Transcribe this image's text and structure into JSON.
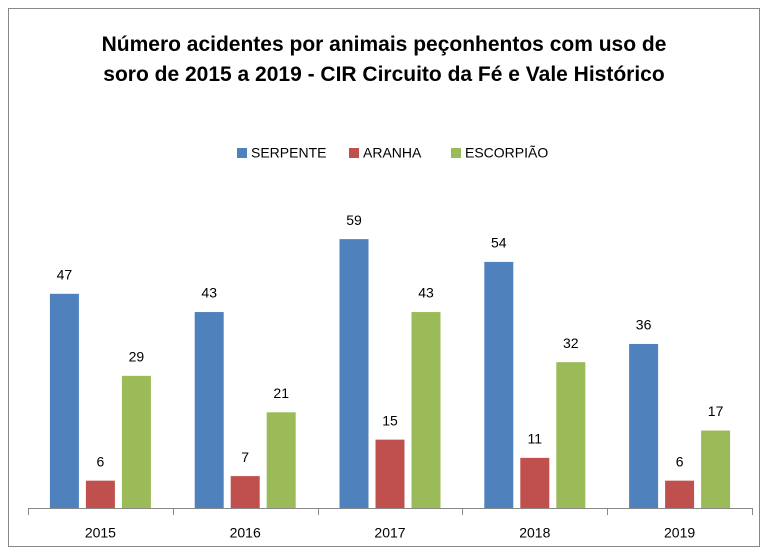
{
  "chart_data": {
    "type": "bar",
    "title": "Número acidentes por animais peçonhentos com uso de soro de 2015 a 2019 -  CIR Circuito da Fé e Vale Histórico",
    "categories": [
      "2015",
      "2016",
      "2017",
      "2018",
      "2019"
    ],
    "series": [
      {
        "name": "SERPENTE",
        "color": "#4f81bd",
        "values": [
          47,
          43,
          59,
          54,
          36
        ]
      },
      {
        "name": "ARANHA",
        "color": "#c0504d",
        "values": [
          6,
          7,
          15,
          11,
          6
        ]
      },
      {
        "name": "ESCORPIÃO",
        "color": "#9bbb59",
        "values": [
          29,
          21,
          43,
          32,
          17
        ]
      }
    ],
    "ylim": [
      0,
      70
    ],
    "legend": "top"
  }
}
